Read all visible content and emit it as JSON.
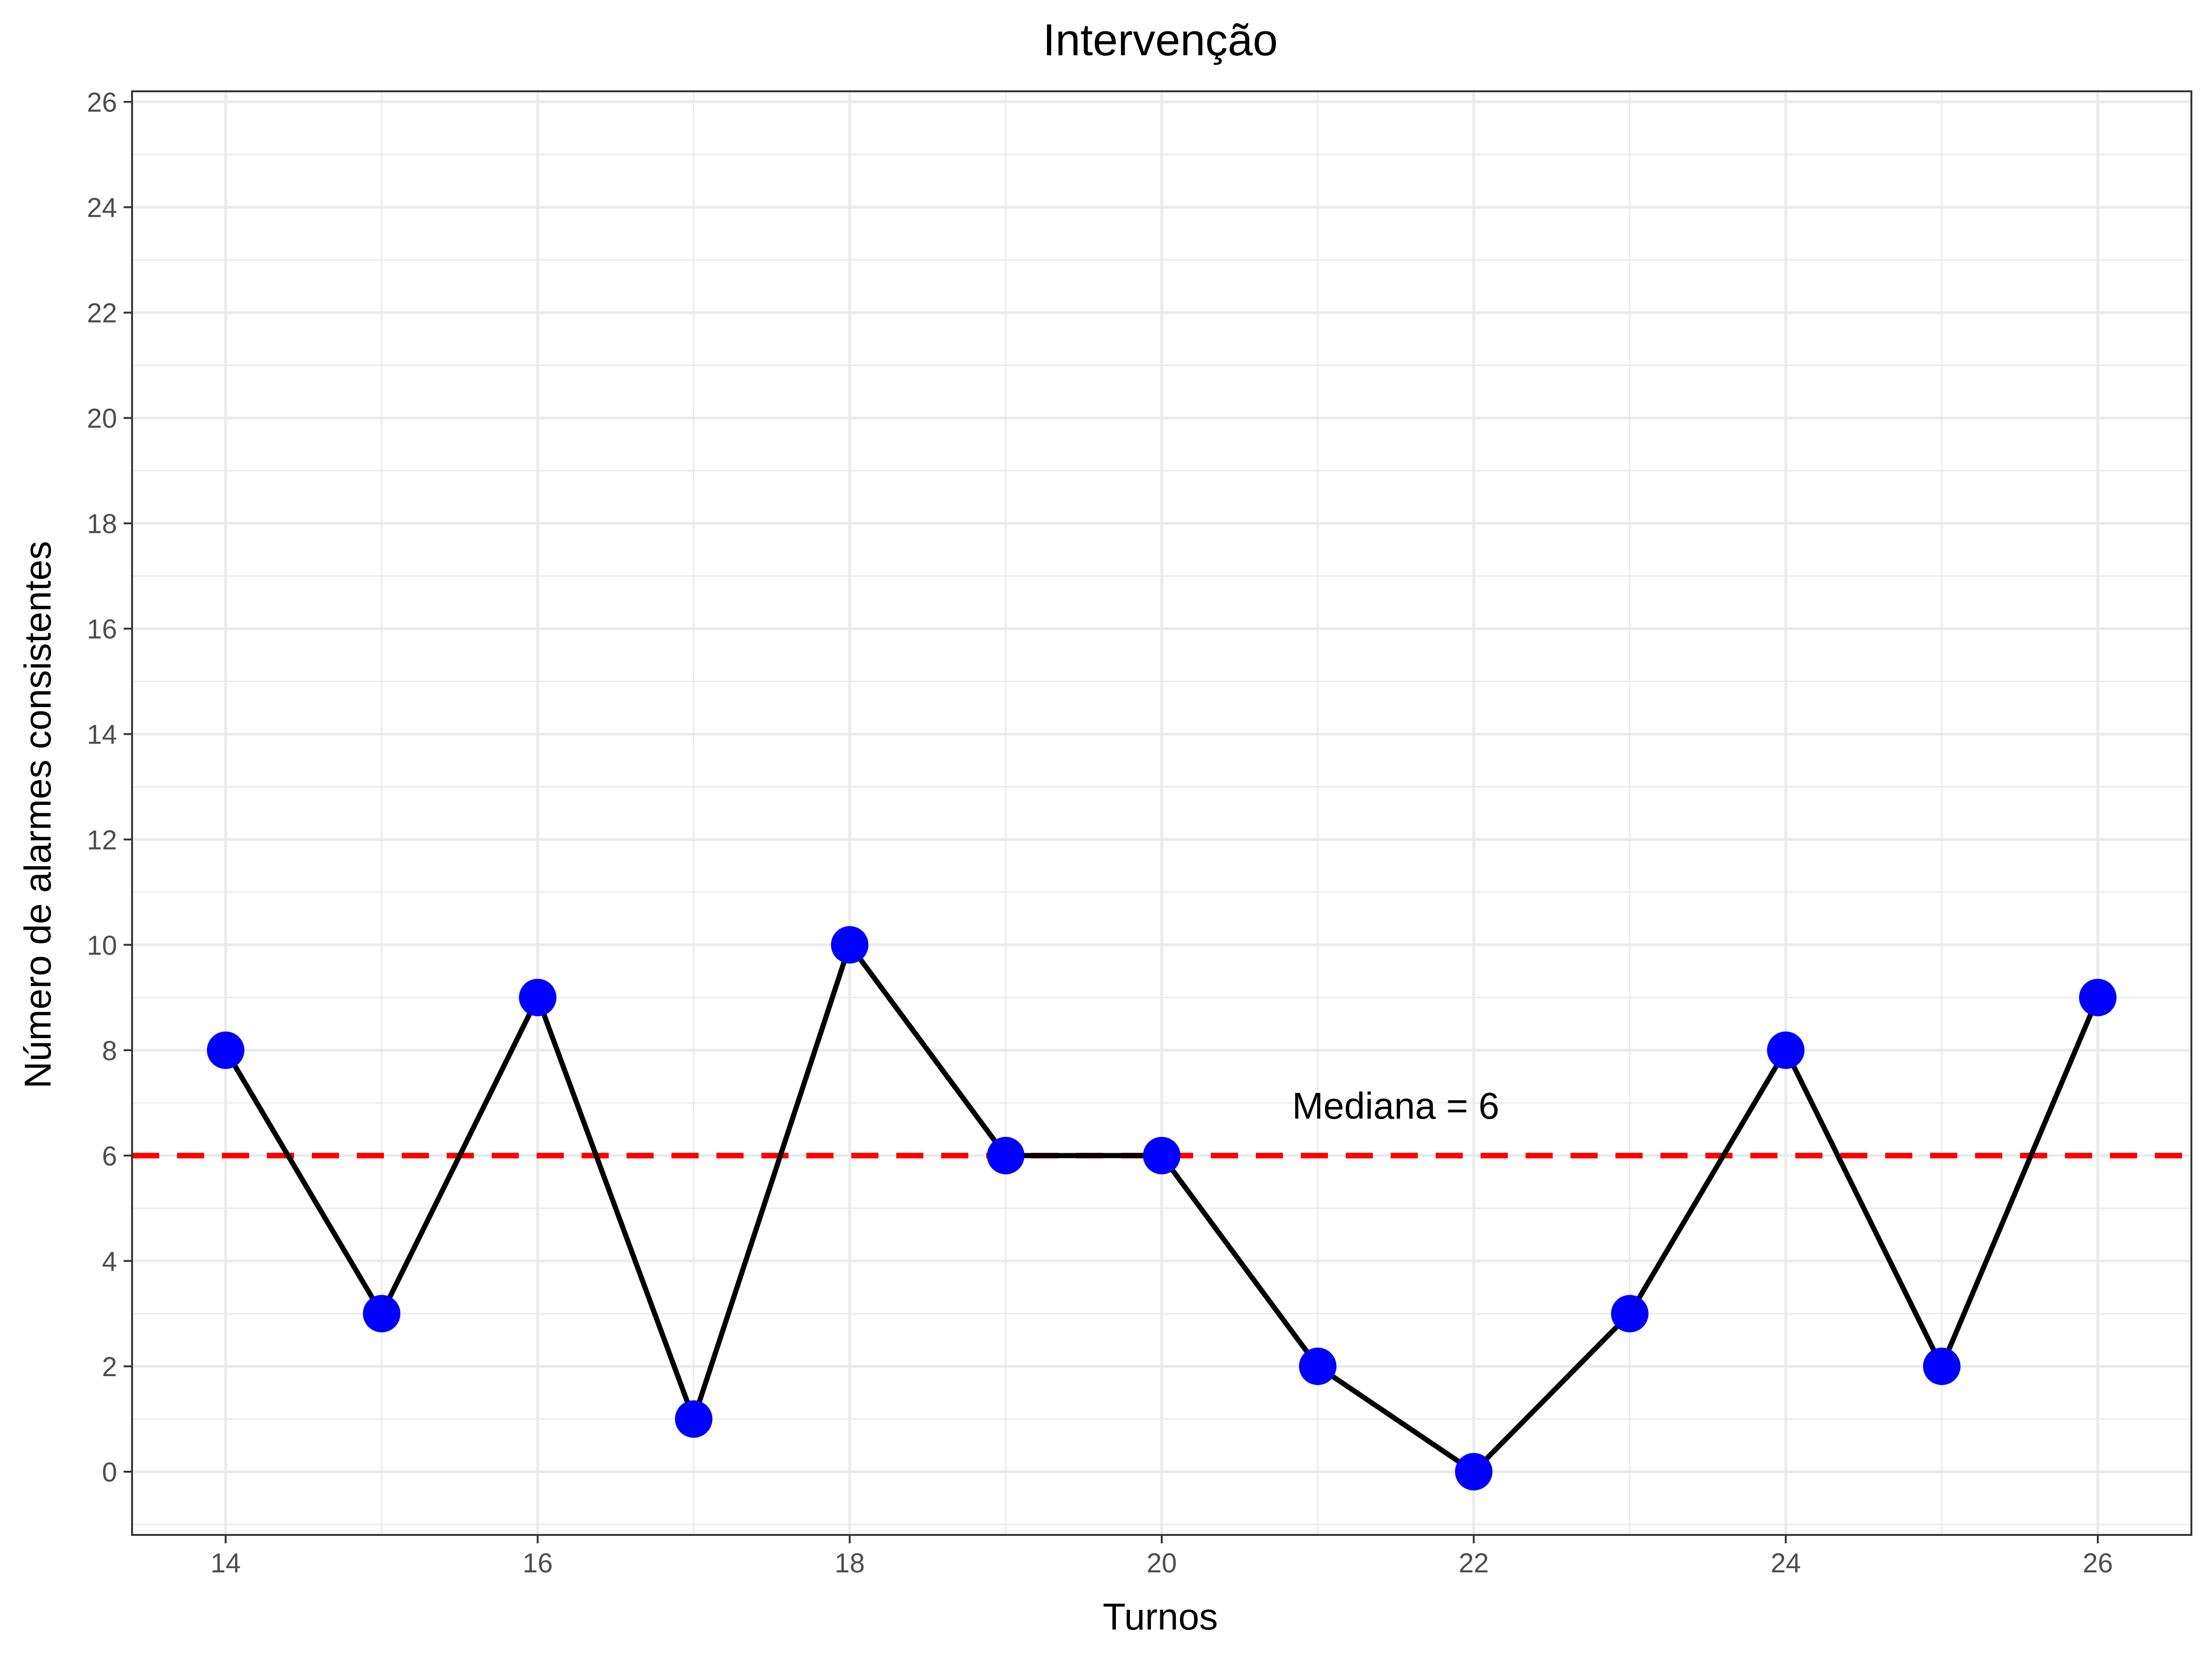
{
  "chart_data": {
    "type": "line",
    "title": "Intervenção",
    "xlabel": "Turnos",
    "ylabel": "Número de alarmes consistentes",
    "x": [
      14,
      15,
      16,
      17,
      18,
      19,
      20,
      21,
      22,
      23,
      24,
      25,
      26
    ],
    "series": [
      {
        "values": [
          8,
          3,
          9,
          1,
          10,
          6,
          6,
          2,
          0,
          3,
          8,
          2,
          9
        ]
      }
    ],
    "xlim": [
      13.4,
      26.6
    ],
    "ylim": [
      -1.2,
      26.2
    ],
    "x_ticks": [
      14,
      16,
      18,
      20,
      22,
      24,
      26
    ],
    "y_ticks": [
      0,
      2,
      4,
      6,
      8,
      10,
      12,
      14,
      16,
      18,
      20,
      22,
      24,
      26
    ],
    "grid": true,
    "reference_line": {
      "y": 6,
      "label": "Mediana = 6",
      "label_x": 21.5,
      "label_y": 6.95,
      "color": "#ff0000"
    },
    "colors": {
      "line": "#000000",
      "points": "#0000ff",
      "median": "#ff0000",
      "grid": "#ebebeb",
      "border": "#333333"
    }
  }
}
